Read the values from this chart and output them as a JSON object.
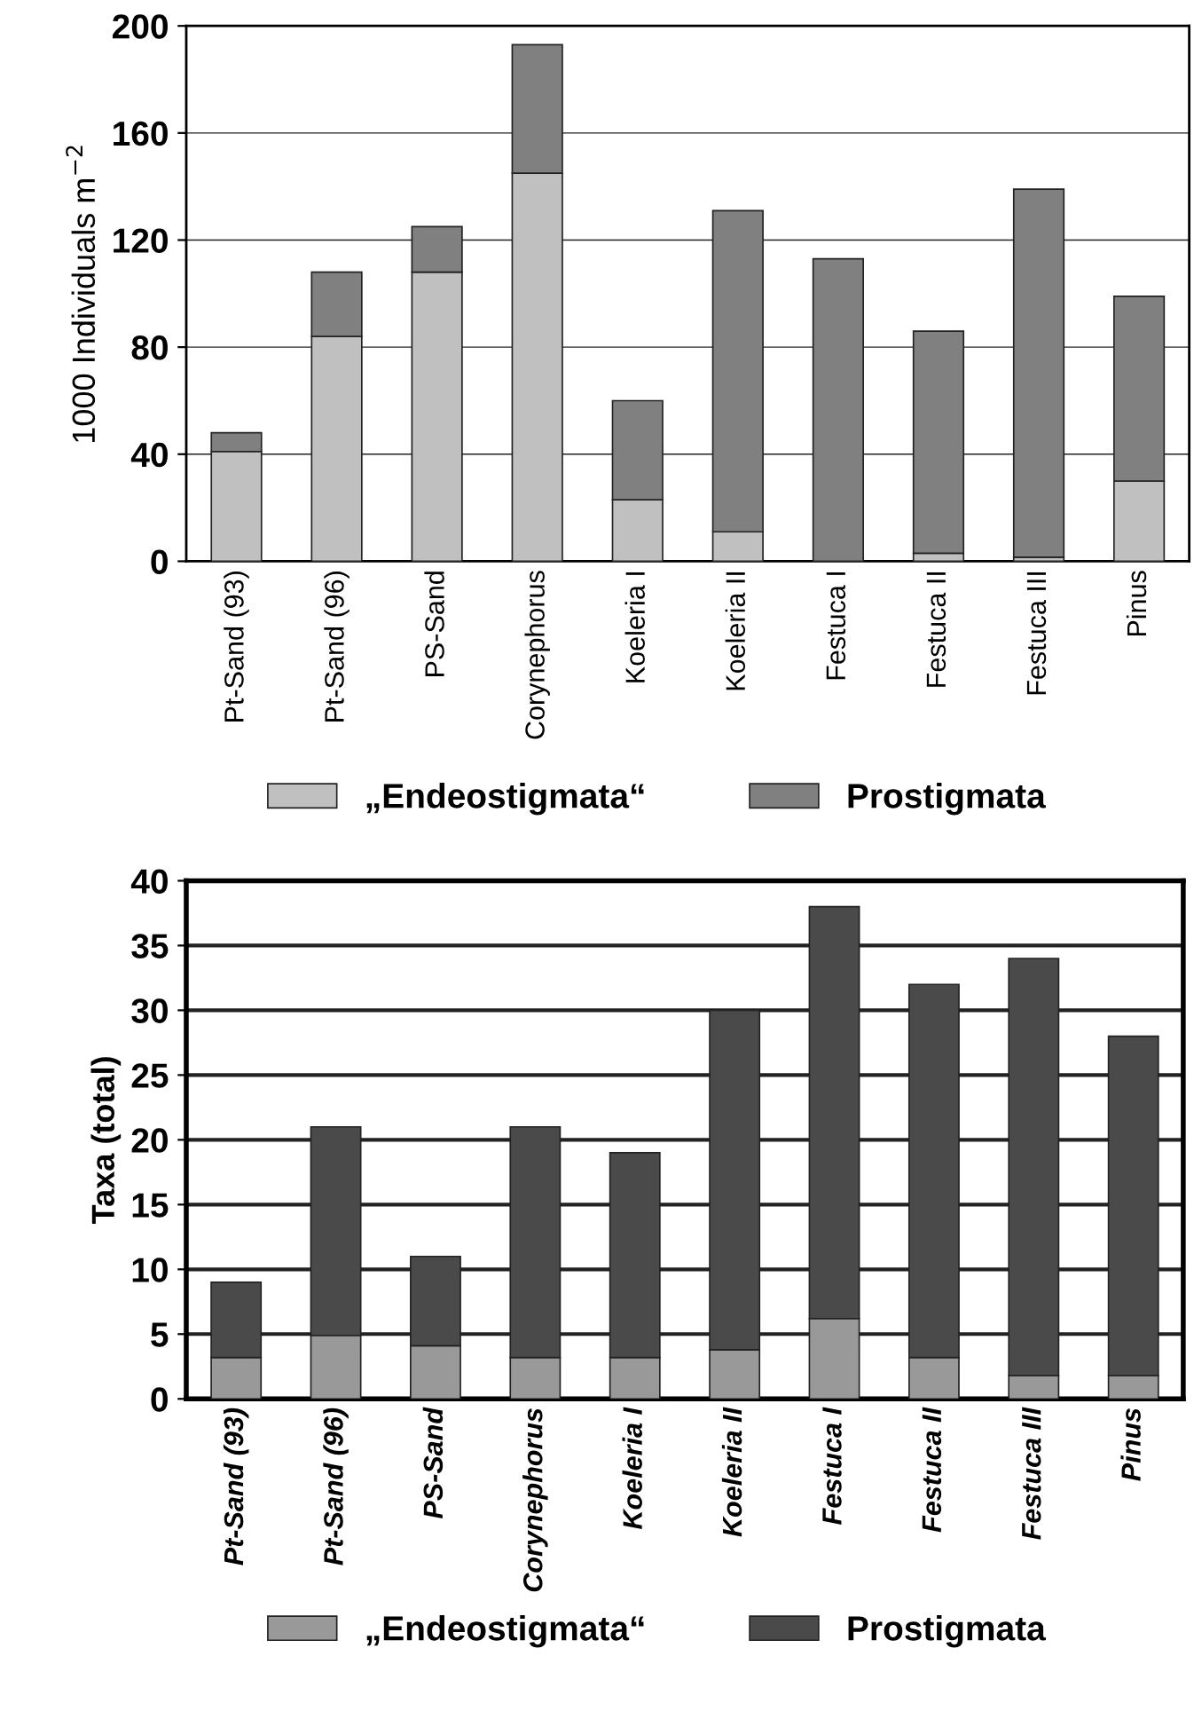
{
  "chart_data": [
    {
      "type": "bar",
      "stacked": true,
      "ylabel": "1000 Individuals m$^{−2}$",
      "categories": [
        "Pt-Sand (93)",
        "Pt-Sand (96)",
        "PS-Sand",
        "Corynephorus",
        "Koeleria I",
        "Koeleria II",
        "Festuca I",
        "Festuca II",
        "Festuca III",
        "Pinus"
      ],
      "series": [
        {
          "name": "„Endeostigmata“",
          "color": "#c0c0c0",
          "values": [
            41,
            84,
            108,
            145,
            23,
            11,
            0,
            3,
            1.5,
            30
          ]
        },
        {
          "name": "Prostigmata",
          "color": "#808080",
          "values": [
            7,
            24,
            17,
            48,
            37,
            120,
            113,
            83,
            137.5,
            69
          ]
        }
      ],
      "ylim": [
        0,
        200
      ],
      "yticks": [
        0,
        40,
        80,
        120,
        160,
        200
      ],
      "grid": "y",
      "legend": "bottom"
    },
    {
      "type": "bar",
      "stacked": true,
      "ylabel": "Taxa (total)",
      "categories": [
        "Pt-Sand (93)",
        "Pt-Sand (96)",
        "PS-Sand",
        "Corynephorus",
        "Koeleria I",
        "Koeleria II",
        "Festuca I",
        "Festuca II",
        "Festuca III",
        "Pinus"
      ],
      "series": [
        {
          "name": "„Endeostigmata“",
          "color": "#999999",
          "values": [
            3.2,
            4.9,
            4.1,
            3.2,
            3.2,
            3.8,
            6.2,
            3.2,
            1.8,
            1.8
          ]
        },
        {
          "name": "Prostigmata",
          "color": "#4a4a4a",
          "values": [
            5.8,
            16.1,
            6.9,
            17.8,
            15.8,
            26.2,
            31.8,
            28.8,
            32.2,
            26.2
          ]
        }
      ],
      "ylim": [
        0,
        40
      ],
      "yticks": [
        0,
        5,
        10,
        15,
        20,
        25,
        30,
        35,
        40
      ],
      "grid": "y",
      "legend": "bottom"
    }
  ]
}
